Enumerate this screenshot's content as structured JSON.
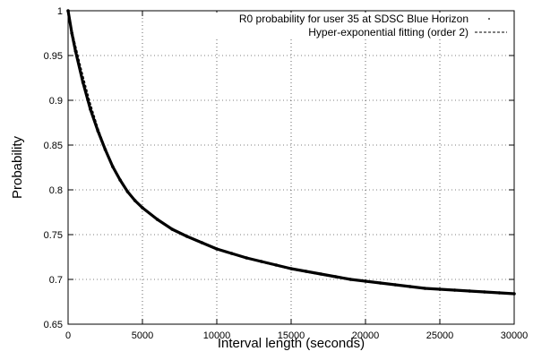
{
  "chart_data": {
    "type": "line",
    "title": "",
    "xlabel": "Interval length (seconds)",
    "ylabel": "Probability",
    "xlim": [
      0,
      30000
    ],
    "ylim": [
      0.65,
      1.0
    ],
    "x_ticks": [
      0,
      5000,
      10000,
      15000,
      20000,
      25000,
      30000
    ],
    "x_tick_labels": [
      "0",
      "5000",
      "10000",
      "15000",
      "20000",
      "25000",
      "30000"
    ],
    "y_ticks": [
      0.65,
      0.7,
      0.75,
      0.8,
      0.85,
      0.9,
      0.95,
      1.0
    ],
    "y_tick_labels": [
      "0.65",
      "0.7",
      "0.75",
      "0.8",
      "0.85",
      "0.9",
      "0.95",
      "1"
    ],
    "grid": true,
    "grid_style": "dotted",
    "legend_position": "top-right",
    "series": [
      {
        "name": "R0 probability for user 35 at SDSC Blue Horizon",
        "style": "dense-points",
        "color": "#000000",
        "x": [
          0,
          250,
          500,
          1000,
          1500,
          2000,
          2500,
          3000,
          3500,
          4000,
          4500,
          5000,
          6000,
          7000,
          8000,
          9000,
          10000,
          11000,
          12000,
          13000,
          14000,
          15000,
          16000,
          17000,
          18000,
          19000,
          20000,
          21000,
          22000,
          23000,
          24000,
          25000,
          26000,
          27000,
          28000,
          29000,
          30000
        ],
        "values": [
          1.0,
          0.975,
          0.955,
          0.92,
          0.89,
          0.866,
          0.845,
          0.826,
          0.811,
          0.798,
          0.788,
          0.78,
          0.767,
          0.756,
          0.748,
          0.741,
          0.734,
          0.729,
          0.724,
          0.72,
          0.716,
          0.712,
          0.709,
          0.706,
          0.703,
          0.7,
          0.698,
          0.696,
          0.694,
          0.692,
          0.69,
          0.689,
          0.688,
          0.687,
          0.686,
          0.685,
          0.684
        ]
      },
      {
        "name": "Hyper-exponential fitting (order 2)",
        "style": "dashed",
        "color": "#000000",
        "x": [
          0,
          250,
          500,
          1000,
          1500,
          2000,
          2500,
          3000,
          3500,
          4000,
          4500,
          5000,
          6000,
          7000,
          8000,
          9000,
          10000,
          11000,
          12000,
          13000,
          14000,
          15000,
          16000,
          17000,
          18000,
          19000,
          20000,
          21000,
          22000,
          23000,
          24000,
          25000,
          26000,
          27000,
          28000,
          29000,
          30000
        ],
        "values": [
          1.0,
          0.98,
          0.962,
          0.928,
          0.897,
          0.87,
          0.847,
          0.827,
          0.811,
          0.798,
          0.788,
          0.779,
          0.767,
          0.757,
          0.749,
          0.742,
          0.735,
          0.729,
          0.724,
          0.719,
          0.715,
          0.711,
          0.708,
          0.705,
          0.702,
          0.7,
          0.698,
          0.696,
          0.694,
          0.692,
          0.69,
          0.689,
          0.688,
          0.687,
          0.686,
          0.685,
          0.684
        ]
      }
    ]
  }
}
